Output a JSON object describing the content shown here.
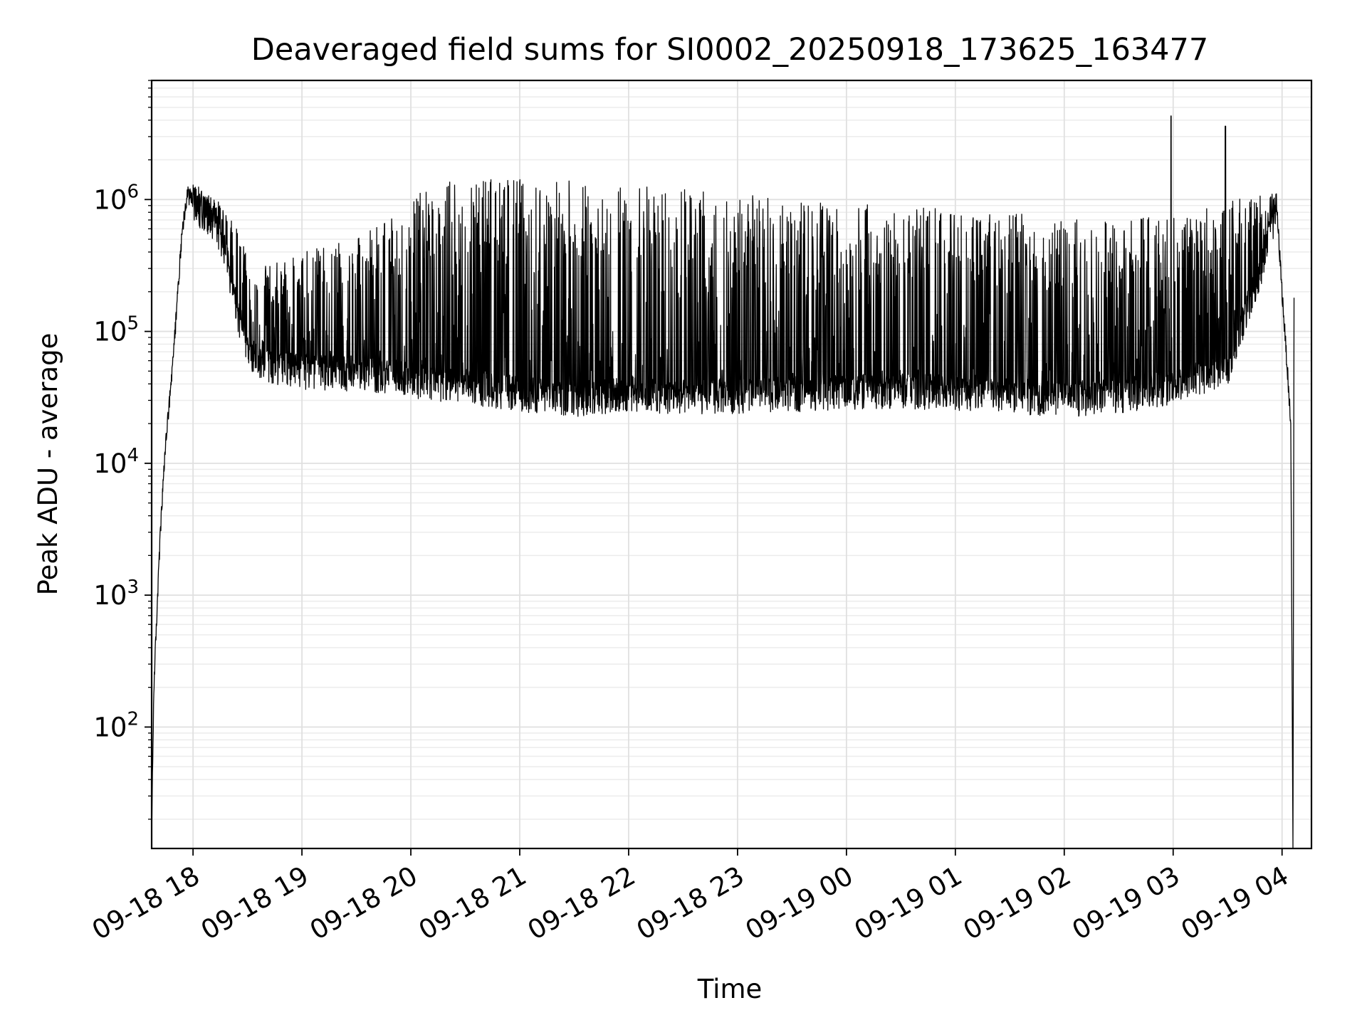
{
  "chart_data": {
    "type": "line",
    "title": "Deaveraged field sums for SI0002_20250918_173625_163477",
    "xlabel": "Time",
    "ylabel": "Peak ADU - average",
    "yscale": "log",
    "ylim": [
      12,
      8000000
    ],
    "xlim_hours": [
      -0.38,
      10.27
    ],
    "grid": true,
    "line_color": "#000000",
    "x_ticks": [
      {
        "label": "09-18 18",
        "hour": 0
      },
      {
        "label": "09-18 19",
        "hour": 1
      },
      {
        "label": "09-18 20",
        "hour": 2
      },
      {
        "label": "09-18 21",
        "hour": 3
      },
      {
        "label": "09-18 22",
        "hour": 4
      },
      {
        "label": "09-18 23",
        "hour": 5
      },
      {
        "label": "09-19 00",
        "hour": 6
      },
      {
        "label": "09-19 01",
        "hour": 7
      },
      {
        "label": "09-19 02",
        "hour": 8
      },
      {
        "label": "09-19 03",
        "hour": 9
      },
      {
        "label": "09-19 04",
        "hour": 10
      }
    ],
    "y_ticks": [
      {
        "base": "10",
        "exp": "2",
        "value": 100
      },
      {
        "base": "10",
        "exp": "3",
        "value": 1000
      },
      {
        "base": "10",
        "exp": "4",
        "value": 10000
      },
      {
        "base": "10",
        "exp": "5",
        "value": 100000
      },
      {
        "base": "10",
        "exp": "6",
        "value": 1000000
      }
    ],
    "series": [
      {
        "name": "Peak ADU - average",
        "envelope_hours": [
          -0.38,
          -0.36,
          -0.33,
          -0.3,
          -0.25,
          -0.2,
          -0.15,
          -0.1,
          -0.05,
          0,
          0.1,
          0.2,
          0.3,
          0.4,
          0.5,
          0.6,
          0.8,
          1.0,
          1.5,
          2.0,
          2.2,
          2.5,
          3.0,
          3.5,
          4.0,
          4.5,
          5.0,
          5.5,
          6.0,
          6.5,
          7.0,
          7.5,
          8.0,
          8.5,
          9.0,
          9.5,
          9.8,
          9.95,
          10.0,
          10.05,
          10.08
        ],
        "baseline": [
          15,
          200,
          800,
          3000,
          15000,
          40000,
          150000,
          600000,
          1100000,
          1000000,
          800000,
          700000,
          400000,
          150000,
          80000,
          60000,
          55000,
          52000,
          50000,
          45000,
          42000,
          40000,
          35000,
          32000,
          35000,
          33000,
          34000,
          35000,
          36000,
          37000,
          36000,
          34000,
          32000,
          34000,
          40000,
          55000,
          300000,
          900000,
          200000,
          50000,
          20000
        ],
        "peak_max": [
          15,
          200,
          800,
          3000,
          15000,
          50000,
          200000,
          800000,
          1400000,
          1300000,
          1200000,
          1000000,
          900000,
          600000,
          400000,
          300000,
          350000,
          400000,
          500000,
          1000000,
          1300000,
          1500000,
          1450000,
          1400000,
          1300000,
          1250000,
          1100000,
          1000000,
          950000,
          900000,
          850000,
          800000,
          750000,
          700000,
          800000,
          1000000,
          1100000,
          1200000,
          300000,
          60000,
          30000
        ],
        "spike_max": 4300000,
        "n_samples": 4200
      }
    ]
  }
}
